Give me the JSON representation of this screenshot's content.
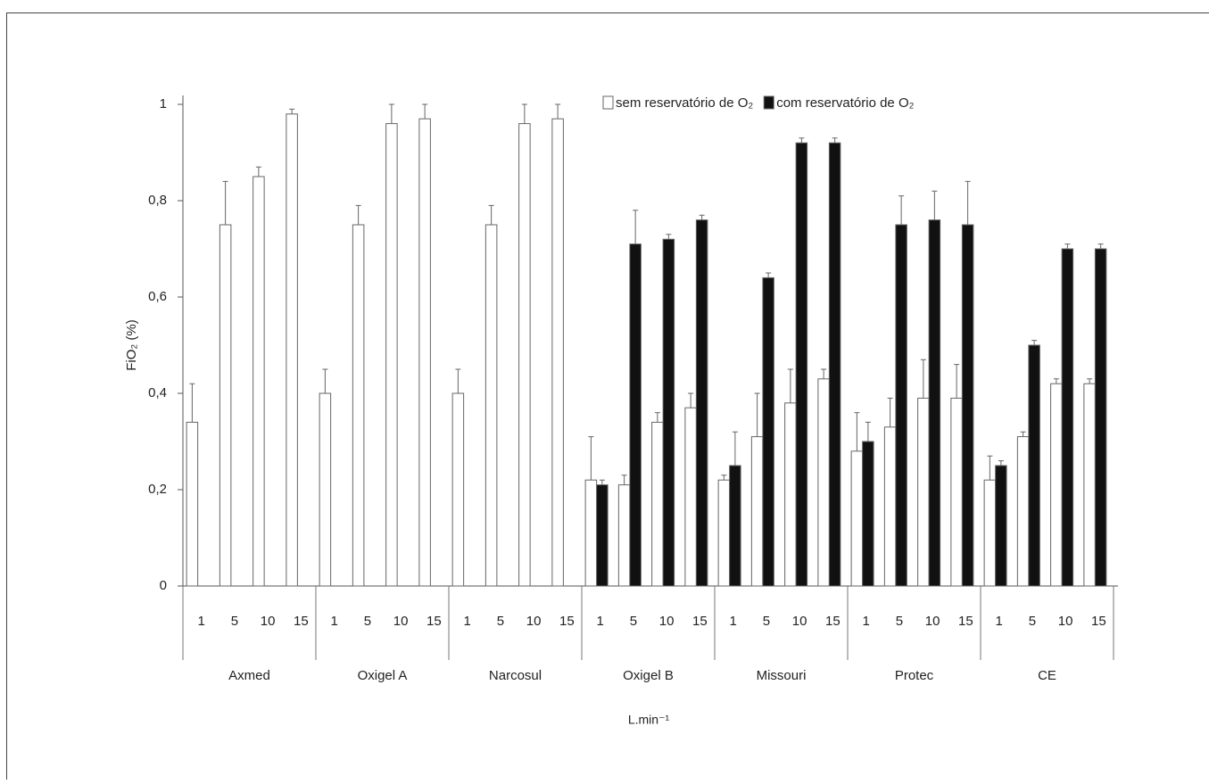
{
  "chart_data": {
    "type": "bar",
    "groups": [
      "Axmed",
      "Oxigel A",
      "Narcosul",
      "Oxigel B",
      "Missouri",
      "Protec",
      "CE"
    ],
    "subcategories": [
      "1",
      "5",
      "10",
      "15"
    ],
    "y_label": "FiO₂ (%)",
    "x_label": "L.min⁻¹",
    "ylim": [
      0,
      1
    ],
    "yticks": [
      0,
      {
        "value": 0.2,
        "label": "0,2"
      },
      {
        "value": 0.4,
        "label": "0,4"
      },
      {
        "value": 0.6,
        "label": "0,6"
      },
      {
        "value": 0.8,
        "label": "0,8"
      },
      1
    ],
    "series": [
      {
        "name": "sem reservatório de O₂",
        "color": "#ffffff",
        "values": [
          0.34,
          0.75,
          0.85,
          0.98,
          0.4,
          0.75,
          0.96,
          0.97,
          0.4,
          0.75,
          0.96,
          0.97,
          0.22,
          0.21,
          0.34,
          0.37,
          0.22,
          0.31,
          0.38,
          0.43,
          0.28,
          0.33,
          0.39,
          0.39,
          0.22,
          0.31,
          0.42,
          0.42
        ],
        "errors": [
          0.08,
          0.09,
          0.02,
          0.01,
          0.05,
          0.04,
          0.04,
          0.03,
          0.05,
          0.04,
          0.04,
          0.03,
          0.09,
          0.02,
          0.02,
          0.03,
          0.01,
          0.09,
          0.07,
          0.02,
          0.08,
          0.06,
          0.08,
          0.07,
          0.05,
          0.01,
          0.01,
          0.01
        ]
      },
      {
        "name": "com reservatório de O₂",
        "color": "#111111",
        "values": [
          null,
          null,
          null,
          null,
          null,
          null,
          null,
          null,
          null,
          null,
          null,
          null,
          0.21,
          0.71,
          0.72,
          0.76,
          0.25,
          0.64,
          0.92,
          0.92,
          0.3,
          0.75,
          0.76,
          0.75,
          0.25,
          0.5,
          0.7,
          0.7
        ],
        "errors": [
          null,
          null,
          null,
          null,
          null,
          null,
          null,
          null,
          null,
          null,
          null,
          null,
          0.01,
          0.07,
          0.01,
          0.01,
          0.07,
          0.01,
          0.01,
          0.01,
          0.04,
          0.06,
          0.06,
          0.09,
          0.01,
          0.01,
          0.01,
          0.01
        ]
      }
    ]
  }
}
